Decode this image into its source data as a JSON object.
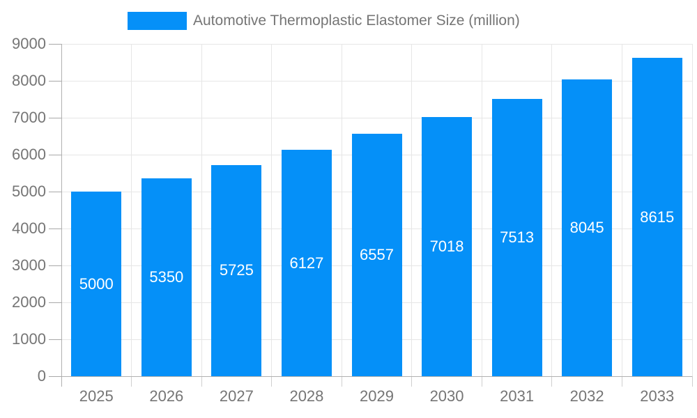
{
  "chart_data": {
    "type": "bar",
    "title": "Automotive Thermoplastic Elastomer Size (million)",
    "categories": [
      "2025",
      "2026",
      "2027",
      "2028",
      "2029",
      "2030",
      "2031",
      "2032",
      "2033"
    ],
    "values": [
      5000,
      5350,
      5725,
      6127,
      6557,
      7018,
      7513,
      8045,
      8615
    ],
    "series": [
      {
        "name": "Automotive Thermoplastic Elastomer Size (million)",
        "values": [
          5000,
          5350,
          5725,
          6127,
          6557,
          7018,
          7513,
          8045,
          8615
        ]
      }
    ],
    "xlabel": "",
    "ylabel": "",
    "ylim": [
      0,
      9000
    ],
    "yticks": [
      0,
      1000,
      2000,
      3000,
      4000,
      5000,
      6000,
      7000,
      8000,
      9000
    ],
    "grid": true,
    "legend_position": "top",
    "bar_color": "#0590f8",
    "bar_label_color": "#ffffff",
    "axis_text_color": "#757575",
    "grid_color": "#e6e6e6",
    "axis_line_color": "#b0b0b0"
  }
}
